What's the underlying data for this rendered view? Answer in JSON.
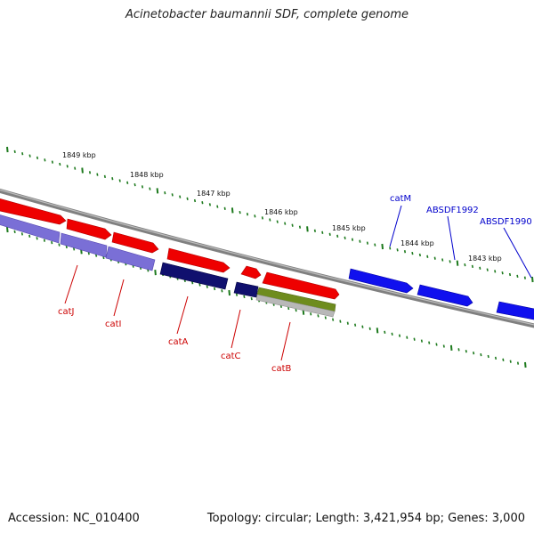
{
  "title": "Acinetobacter baumannii SDF, complete genome",
  "footer": {
    "accession": "Accession: NC_010400",
    "summary": "Topology: circular; Length: 3,421,954 bp; Genes: 3,000"
  },
  "colors": {
    "backbone": "#808080",
    "tick": "#1d7a1d",
    "red_feature": "#ee0000",
    "blue_feature": "#1010ee",
    "navy_feature": "#10106e",
    "lavender_feature": "#7a6fd6",
    "olive_feature": "#6e8c1e",
    "gray_feature": "#b8b8b8",
    "red_label": "#cc0000",
    "blue_label": "#0000cc"
  },
  "scale_labels": [
    "1849 kbp",
    "1848 kbp",
    "1847 kbp",
    "1846 kbp",
    "1845 kbp",
    "1844 kbp",
    "1843 kbp"
  ],
  "gene_labels": [
    {
      "text": "catJ",
      "color": "red"
    },
    {
      "text": "catI",
      "color": "red"
    },
    {
      "text": "catA",
      "color": "red"
    },
    {
      "text": "catC",
      "color": "red"
    },
    {
      "text": "catB",
      "color": "red"
    },
    {
      "text": "catM",
      "color": "blue"
    },
    {
      "text": "ABSDF1992",
      "color": "blue"
    },
    {
      "text": "ABSDF1990",
      "color": "blue"
    }
  ]
}
